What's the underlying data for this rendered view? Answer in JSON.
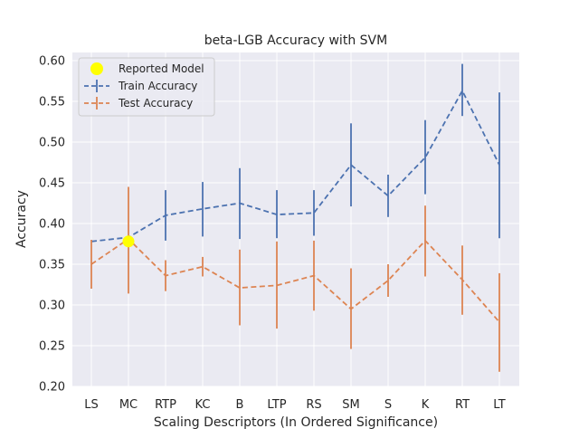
{
  "chart_data": {
    "type": "line",
    "title": "beta-LGB Accuracy with SVM",
    "xlabel": "Scaling Descriptors (In Ordered Significance)",
    "ylabel": "Accuracy",
    "categories": [
      "LS",
      "MC",
      "RTP",
      "KC",
      "B",
      "LTP",
      "RS",
      "SM",
      "S",
      "K",
      "RT",
      "LT"
    ],
    "ylim": [
      0.2,
      0.61
    ],
    "yticks": [
      0.2,
      0.25,
      0.3,
      0.35,
      0.4,
      0.45,
      0.5,
      0.55,
      0.6
    ],
    "ytick_labels": [
      "0.20",
      "0.25",
      "0.30",
      "0.35",
      "0.40",
      "0.45",
      "0.50",
      "0.55",
      "0.60"
    ],
    "grid": true,
    "legend_position": "top-left",
    "series": [
      {
        "name": "Train Accuracy",
        "color": "#4c72b0",
        "values": [
          0.378,
          0.383,
          0.41,
          0.418,
          0.425,
          0.411,
          0.413,
          0.472,
          0.434,
          0.481,
          0.563,
          0.472
        ],
        "err_low": [
          0.378,
          0.383,
          0.379,
          0.384,
          0.381,
          0.382,
          0.385,
          0.421,
          0.408,
          0.436,
          0.532,
          0.382
        ],
        "err_high": [
          0.378,
          0.383,
          0.441,
          0.451,
          0.468,
          0.441,
          0.441,
          0.523,
          0.46,
          0.527,
          0.596,
          0.561
        ]
      },
      {
        "name": "Test Accuracy",
        "color": "#dd8452",
        "values": [
          0.35,
          0.381,
          0.336,
          0.347,
          0.321,
          0.324,
          0.336,
          0.295,
          0.33,
          0.379,
          0.331,
          0.279
        ],
        "err_low": [
          0.32,
          0.314,
          0.317,
          0.335,
          0.275,
          0.271,
          0.293,
          0.246,
          0.31,
          0.335,
          0.288,
          0.218
        ],
        "err_high": [
          0.38,
          0.445,
          0.355,
          0.359,
          0.368,
          0.378,
          0.379,
          0.345,
          0.35,
          0.422,
          0.373,
          0.339
        ]
      }
    ],
    "reported_model": {
      "name": "Reported Model",
      "category": "MC",
      "value": 0.378,
      "color": "#ffff00"
    }
  }
}
